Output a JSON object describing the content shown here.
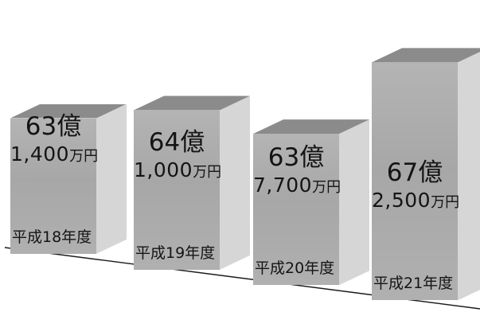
{
  "chart_data": {
    "type": "bar",
    "title": "",
    "xlabel": "",
    "ylabel": "",
    "categories": [
      "平成18年度",
      "平成19年度",
      "平成20年度",
      "平成21年度"
    ],
    "values": [
      6314000000,
      6410000000,
      6377000000,
      6725000000
    ],
    "value_labels": [
      {
        "oku": "63億",
        "man": "1,400",
        "unit": "万円"
      },
      {
        "oku": "64億",
        "man": "1,000",
        "unit": "万円"
      },
      {
        "oku": "63億",
        "man": "7,700",
        "unit": "万円"
      },
      {
        "oku": "67億",
        "man": "2,500",
        "unit": "万円"
      }
    ],
    "style": "3d-columns",
    "colors": {
      "front": "#acacac",
      "top": "#8b8b8b",
      "side": "#d6d6d6"
    },
    "grid": false,
    "legend": "none"
  }
}
